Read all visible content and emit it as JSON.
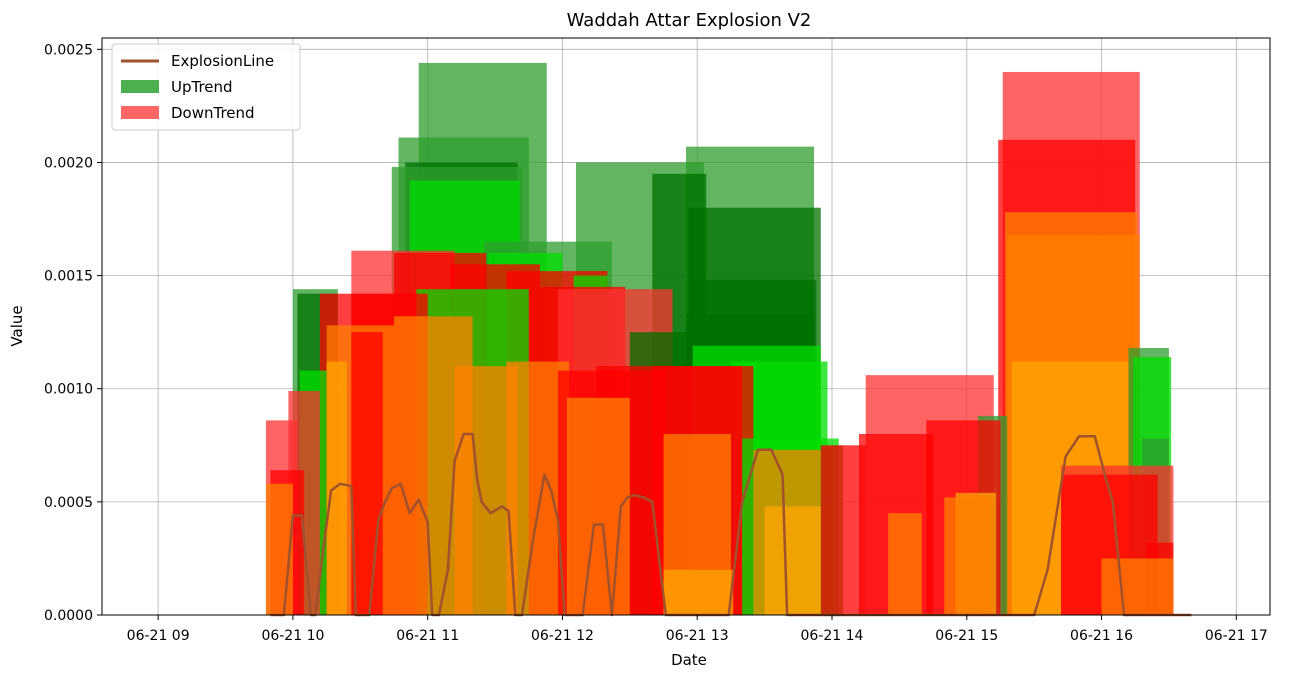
{
  "chart_data": {
    "type": "bar",
    "title": "Waddah Attar Explosion V2",
    "xlabel": "Date",
    "ylabel": "Value",
    "xlim": [
      "06-21 08:35",
      "06-21 17:15"
    ],
    "ylim": [
      0,
      0.00255
    ],
    "grid": true,
    "legend_position": "top-left",
    "x_ticks": [
      "06-21 09",
      "06-21 10",
      "06-21 11",
      "06-21 12",
      "06-21 13",
      "06-21 14",
      "06-21 15",
      "06-21 16",
      "06-21 17"
    ],
    "y_ticks": [
      "0.0000",
      "0.0005",
      "0.0010",
      "0.0015",
      "0.0020",
      "0.0025"
    ],
    "colors": {
      "explosion_line": "#a0522d",
      "uptrend_legend": "#4caf50",
      "downtrend_legend": "#ff6666",
      "up_light": "#00dd00",
      "up_dark": "#007000",
      "up_mid": "#2e9e2e",
      "down_light": "#ff8000",
      "down_dark": "#ff0000",
      "down_mid": "#ff3030",
      "orange": "#ffa500"
    },
    "series": [
      {
        "name": "ExplosionLine",
        "type": "line",
        "x": [
          "06-21 09:50",
          "06-21 09:56",
          "06-21 10:00",
          "06-21 10:04",
          "06-21 10:08",
          "06-21 10:10",
          "06-21 10:13",
          "06-21 10:17",
          "06-21 10:21",
          "06-21 10:26",
          "06-21 10:28",
          "06-21 10:30",
          "06-21 10:34",
          "06-21 10:38",
          "06-21 10:41",
          "06-21 10:44",
          "06-21 10:48",
          "06-21 10:52",
          "06-21 10:56",
          "06-21 11:00",
          "06-21 11:02",
          "06-21 11:05",
          "06-21 11:09",
          "06-21 11:12",
          "06-21 11:16",
          "06-21 11:20",
          "06-21 11:22",
          "06-21 11:24",
          "06-21 11:28",
          "06-21 11:33",
          "06-21 11:36",
          "06-21 11:39",
          "06-21 11:42",
          "06-21 11:47",
          "06-21 11:52",
          "06-21 11:55",
          "06-21 11:58",
          "06-21 12:01",
          "06-21 12:04",
          "06-21 12:09",
          "06-21 12:14",
          "06-21 12:18",
          "06-21 12:22",
          "06-21 12:26",
          "06-21 12:29",
          "06-21 12:32",
          "06-21 12:36",
          "06-21 12:40",
          "06-21 12:46",
          "06-21 12:52",
          "06-21 12:58",
          "06-21 13:03",
          "06-21 13:08",
          "06-21 13:14",
          "06-21 13:20",
          "06-21 13:27",
          "06-21 13:33",
          "06-21 13:38",
          "06-21 13:40",
          "06-21 13:43",
          "06-21 13:50",
          "06-21 14:00",
          "06-21 14:30",
          "06-21 15:00",
          "06-21 15:30",
          "06-21 15:36",
          "06-21 15:44",
          "06-21 15:50",
          "06-21 15:57",
          "06-21 16:02",
          "06-21 16:05",
          "06-21 16:10",
          "06-21 16:40"
        ],
        "y": [
          0,
          0,
          0.00044,
          0.00044,
          0,
          0,
          0.00025,
          0.00055,
          0.00058,
          0.00057,
          0,
          0,
          0,
          0.00042,
          0.0005,
          0.00056,
          0.00058,
          0.00045,
          0.00051,
          0.00041,
          0,
          0,
          0.0002,
          0.00068,
          0.0008,
          0.0008,
          0.0006,
          0.0005,
          0.00045,
          0.00048,
          0.00046,
          0,
          0,
          0.00034,
          0.00062,
          0.00055,
          0.00042,
          0,
          0,
          0,
          0.0004,
          0.0004,
          0,
          0.00048,
          0.00052,
          0.00053,
          0.00052,
          0.0005,
          0,
          0,
          0,
          0,
          0,
          0,
          0.0005,
          0.00073,
          0.00073,
          0.00062,
          0,
          0,
          0,
          0,
          0,
          0,
          0,
          0.0002,
          0.0007,
          0.00079,
          0.00079,
          0.0006,
          0.0005,
          0,
          0
        ]
      },
      {
        "name": "UpTrend",
        "type": "bar",
        "bars": [
          {
            "x0": "06-21 10:00",
            "x1": "06-21 10:20",
            "y": 0.00144,
            "shade": "up_mid"
          },
          {
            "x0": "06-21 10:02",
            "x1": "06-21 10:20",
            "y": 0.00142,
            "shade": "up_dark"
          },
          {
            "x0": "06-21 10:03",
            "x1": "06-21 10:15",
            "y": 0.00108,
            "shade": "up_light"
          },
          {
            "x0": "06-21 10:44",
            "x1": "06-21 11:42",
            "y": 0.00198,
            "shade": "up_mid"
          },
          {
            "x0": "06-21 10:47",
            "x1": "06-21 11:45",
            "y": 0.00211,
            "shade": "up_mid"
          },
          {
            "x0": "06-21 10:50",
            "x1": "06-21 11:40",
            "y": 0.002,
            "shade": "up_dark"
          },
          {
            "x0": "06-21 10:52",
            "x1": "06-21 11:41",
            "y": 0.00192,
            "shade": "up_light"
          },
          {
            "x0": "06-21 10:56",
            "x1": "06-21 11:53",
            "y": 0.00244,
            "shade": "up_mid"
          },
          {
            "x0": "06-21 10:55",
            "x1": "06-21 11:45",
            "y": 0.00144,
            "shade": "up_light"
          },
          {
            "x0": "06-21 11:25",
            "x1": "06-21 12:22",
            "y": 0.00165,
            "shade": "up_mid"
          },
          {
            "x0": "06-21 11:27",
            "x1": "06-21 12:00",
            "y": 0.0016,
            "shade": "up_light"
          },
          {
            "x0": "06-21 12:06",
            "x1": "06-21 13:03",
            "y": 0.002,
            "shade": "up_mid"
          },
          {
            "x0": "06-21 12:05",
            "x1": "06-21 12:20",
            "y": 0.0015,
            "shade": "up_light"
          },
          {
            "x0": "06-21 12:30",
            "x1": "06-21 13:02",
            "y": 0.00125,
            "shade": "up_dark"
          },
          {
            "x0": "06-21 12:40",
            "x1": "06-21 13:04",
            "y": 0.00195,
            "shade": "up_dark"
          },
          {
            "x0": "06-21 12:55",
            "x1": "06-21 13:52",
            "y": 0.00207,
            "shade": "up_mid"
          },
          {
            "x0": "06-21 12:56",
            "x1": "06-21 13:55",
            "y": 0.0018,
            "shade": "up_dark"
          },
          {
            "x0": "06-21 12:57",
            "x1": "06-21 13:53",
            "y": 0.00148,
            "shade": "up_dark"
          },
          {
            "x0": "06-21 12:55",
            "x1": "06-21 13:52",
            "y": 0.00133,
            "shade": "up_dark"
          },
          {
            "x0": "06-21 12:58",
            "x1": "06-21 13:55",
            "y": 0.00119,
            "shade": "up_light"
          },
          {
            "x0": "06-21 13:15",
            "x1": "06-21 13:58",
            "y": 0.00112,
            "shade": "up_light"
          },
          {
            "x0": "06-21 13:20",
            "x1": "06-21 14:03",
            "y": 0.00078,
            "shade": "up_light"
          },
          {
            "x0": "06-21 13:55",
            "x1": "06-21 14:05",
            "y": 0.00075,
            "shade": "up_mid"
          },
          {
            "x0": "06-21 15:05",
            "x1": "06-21 15:18",
            "y": 0.00088,
            "shade": "up_mid"
          },
          {
            "x0": "06-21 16:12",
            "x1": "06-21 16:30",
            "y": 0.00118,
            "shade": "up_mid"
          },
          {
            "x0": "06-21 16:14",
            "x1": "06-21 16:31",
            "y": 0.00114,
            "shade": "up_light"
          },
          {
            "x0": "06-21 16:18",
            "x1": "06-21 16:30",
            "y": 0.00078,
            "shade": "up_mid"
          }
        ]
      },
      {
        "name": "DownTrend",
        "type": "bar",
        "bars": [
          {
            "x0": "06-21 09:48",
            "x1": "06-21 10:02",
            "y": 0.00086,
            "shade": "down_mid"
          },
          {
            "x0": "06-21 09:50",
            "x1": "06-21 10:05",
            "y": 0.00064,
            "shade": "down_dark"
          },
          {
            "x0": "06-21 09:48",
            "x1": "06-21 10:00",
            "y": 0.00058,
            "shade": "down_light"
          },
          {
            "x0": "06-21 09:58",
            "x1": "06-21 10:12",
            "y": 0.00099,
            "shade": "down_mid"
          },
          {
            "x0": "06-21 10:12",
            "x1": "06-21 10:45",
            "y": 0.00142,
            "shade": "down_dark"
          },
          {
            "x0": "06-21 10:15",
            "x1": "06-21 10:45",
            "y": 0.00128,
            "shade": "down_light"
          },
          {
            "x0": "06-21 10:15",
            "x1": "06-21 10:24",
            "y": 0.00112,
            "shade": "orange"
          },
          {
            "x0": "06-21 10:26",
            "x1": "06-21 11:12",
            "y": 0.00161,
            "shade": "down_mid"
          },
          {
            "x0": "06-21 10:26",
            "x1": "06-21 11:00",
            "y": 0.00142,
            "shade": "down_dark"
          },
          {
            "x0": "06-21 10:26",
            "x1": "06-21 10:40",
            "y": 0.00125,
            "shade": "down_dark"
          },
          {
            "x0": "06-21 10:45",
            "x1": "06-21 11:26",
            "y": 0.0016,
            "shade": "down_dark"
          },
          {
            "x0": "06-21 10:45",
            "x1": "06-21 11:20",
            "y": 0.00132,
            "shade": "down_light"
          },
          {
            "x0": "06-21 11:10",
            "x1": "06-21 11:50",
            "y": 0.00155,
            "shade": "down_dark"
          },
          {
            "x0": "06-21 11:12",
            "x1": "06-21 11:40",
            "y": 0.0011,
            "shade": "down_light"
          },
          {
            "x0": "06-21 11:35",
            "x1": "06-21 12:20",
            "y": 0.00152,
            "shade": "down_dark"
          },
          {
            "x0": "06-21 11:35",
            "x1": "06-21 12:03",
            "y": 0.00112,
            "shade": "down_light"
          },
          {
            "x0": "06-21 11:50",
            "x1": "06-21 12:28",
            "y": 0.00145,
            "shade": "down_dark"
          },
          {
            "x0": "06-21 11:58",
            "x1": "06-21 12:49",
            "y": 0.00144,
            "shade": "down_mid"
          },
          {
            "x0": "06-21 11:58",
            "x1": "06-21 12:46",
            "y": 0.00108,
            "shade": "down_dark"
          },
          {
            "x0": "06-21 12:02",
            "x1": "06-21 12:30",
            "y": 0.00096,
            "shade": "down_light"
          },
          {
            "x0": "06-21 12:15",
            "x1": "06-21 13:20",
            "y": 0.0011,
            "shade": "down_dark"
          },
          {
            "x0": "06-21 12:40",
            "x1": "06-21 13:25",
            "y": 0.0011,
            "shade": "down_dark"
          },
          {
            "x0": "06-21 12:45",
            "x1": "06-21 13:15",
            "y": 0.0008,
            "shade": "down_light"
          },
          {
            "x0": "06-21 12:45",
            "x1": "06-21 13:16",
            "y": 0.0002,
            "shade": "orange"
          },
          {
            "x0": "06-21 13:25",
            "x1": "06-21 13:55",
            "y": 0.00073,
            "shade": "down_light"
          },
          {
            "x0": "06-21 13:30",
            "x1": "06-21 13:55",
            "y": 0.00048,
            "shade": "orange"
          },
          {
            "x0": "06-21 13:55",
            "x1": "06-21 14:15",
            "y": 0.00075,
            "shade": "down_dark"
          },
          {
            "x0": "06-21 14:15",
            "x1": "06-21 15:12",
            "y": 0.00106,
            "shade": "down_mid"
          },
          {
            "x0": "06-21 14:12",
            "x1": "06-21 14:45",
            "y": 0.0008,
            "shade": "down_dark"
          },
          {
            "x0": "06-21 14:25",
            "x1": "06-21 14:40",
            "y": 0.00045,
            "shade": "down_light"
          },
          {
            "x0": "06-21 14:42",
            "x1": "06-21 15:15",
            "y": 0.00086,
            "shade": "down_dark"
          },
          {
            "x0": "06-21 14:50",
            "x1": "06-21 15:10",
            "y": 0.00052,
            "shade": "down_light"
          },
          {
            "x0": "06-21 14:55",
            "x1": "06-21 15:13",
            "y": 0.00054,
            "shade": "orange"
          },
          {
            "x0": "06-21 15:16",
            "x1": "06-21 16:17",
            "y": 0.0024,
            "shade": "down_mid"
          },
          {
            "x0": "06-21 15:14",
            "x1": "06-21 16:15",
            "y": 0.0021,
            "shade": "down_dark"
          },
          {
            "x0": "06-21 15:17",
            "x1": "06-21 16:16",
            "y": 0.00178,
            "shade": "down_light"
          },
          {
            "x0": "06-21 15:18",
            "x1": "06-21 16:17",
            "y": 0.00168,
            "shade": "down_light"
          },
          {
            "x0": "06-21 15:20",
            "x1": "06-21 16:12",
            "y": 0.00112,
            "shade": "orange"
          },
          {
            "x0": "06-21 15:42",
            "x1": "06-21 16:32",
            "y": 0.00066,
            "shade": "down_mid"
          },
          {
            "x0": "06-21 15:42",
            "x1": "06-21 16:25",
            "y": 0.00062,
            "shade": "down_dark"
          },
          {
            "x0": "06-21 16:00",
            "x1": "06-21 16:32",
            "y": 0.00025,
            "shade": "down_light"
          },
          {
            "x0": "06-21 16:20",
            "x1": "06-21 16:32",
            "y": 0.00032,
            "shade": "down_dark"
          }
        ]
      }
    ]
  }
}
